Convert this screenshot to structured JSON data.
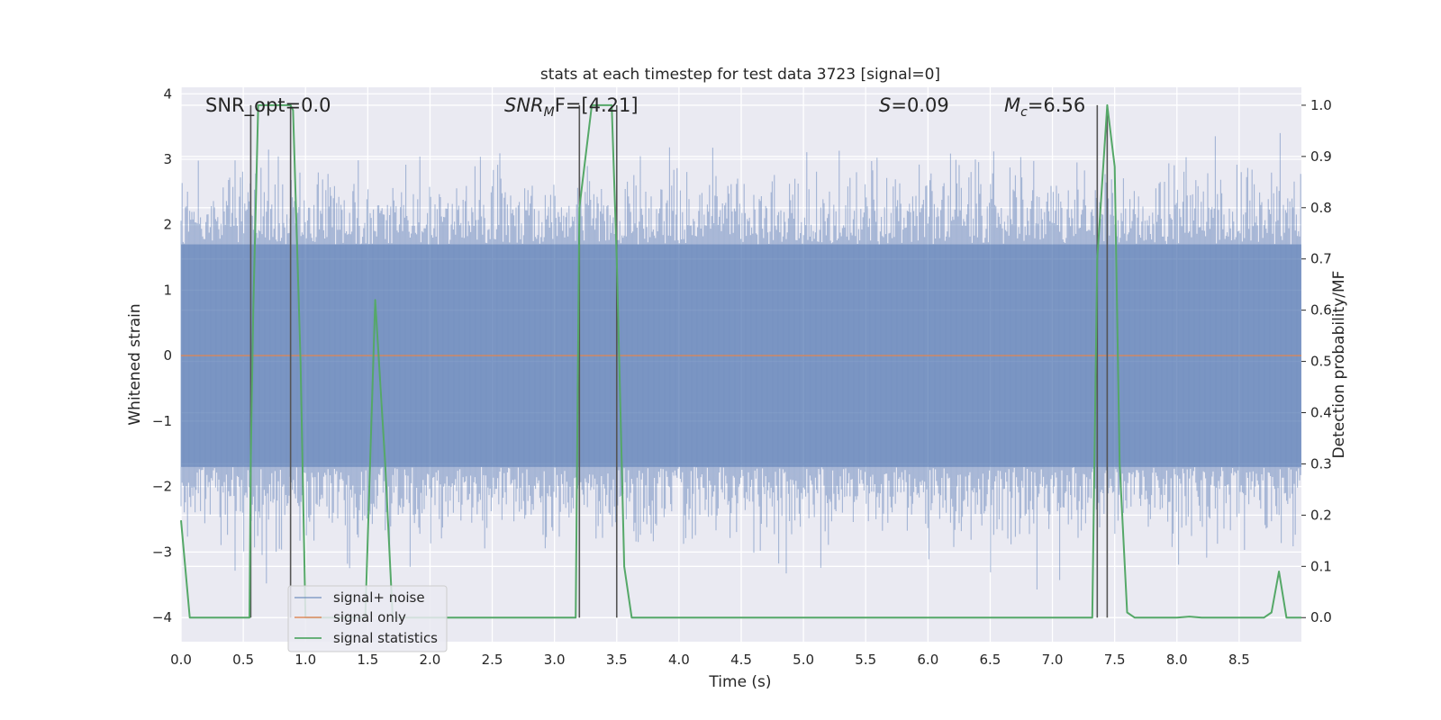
{
  "chart_data": {
    "type": "line",
    "title": "stats at each timestep for test data 3723 [signal=0]",
    "xlabel": "Time (s)",
    "ylabel_left": "Whitened strain",
    "ylabel_right": "Detection probability/MF",
    "xlim": [
      0,
      9.0
    ],
    "ylim_left": [
      -4.37,
      4.1
    ],
    "ylim_right": [
      -0.047,
      1.035
    ],
    "x_ticks": [
      "0.0",
      "0.5",
      "1.0",
      "1.5",
      "2.0",
      "2.5",
      "3.0",
      "3.5",
      "4.0",
      "4.5",
      "5.0",
      "5.5",
      "6.0",
      "6.5",
      "7.0",
      "7.5",
      "8.0",
      "8.5"
    ],
    "y_left_ticks": [
      "−4",
      "−3",
      "−2",
      "−1",
      "0",
      "1",
      "2",
      "3",
      "4"
    ],
    "y_right_ticks": [
      "0.0",
      "0.1",
      "0.2",
      "0.3",
      "0.4",
      "0.5",
      "0.6",
      "0.7",
      "0.8",
      "0.9",
      "1.0"
    ],
    "annotations": {
      "snr_opt": "SNR_opt=0.0",
      "snr_mf_sym": "SNR",
      "snr_mf_sub": "M",
      "snr_mf_rest": "F=[4.21]",
      "s_sym": "S",
      "s_rest": "=0.09",
      "mc_sym": "M",
      "mc_sub": "c",
      "mc_rest": "=6.56"
    },
    "series": [
      {
        "name": "signal+ noise",
        "color": "#4c72b0",
        "axis": "left",
        "style": "noise band",
        "band": [
          -1.7,
          1.7
        ],
        "spike_range": [
          -3.9,
          3.4
        ],
        "sample_rate": 2048
      },
      {
        "name": "signal only",
        "color": "#dd8452",
        "axis": "left",
        "x": [
          0,
          9.0
        ],
        "y": [
          0,
          0
        ]
      },
      {
        "name": "signal statistics",
        "color": "#55a868",
        "axis": "right",
        "x": [
          0.0,
          0.07,
          0.13,
          0.2,
          0.55,
          0.56,
          0.58,
          0.62,
          0.72,
          0.88,
          0.9,
          0.96,
          1.0,
          1.48,
          1.56,
          1.64,
          1.7,
          3.1,
          3.17,
          3.2,
          3.3,
          3.46,
          3.5,
          3.56,
          3.62,
          7.28,
          7.32,
          7.36,
          7.44,
          7.5,
          7.54,
          7.6,
          7.66,
          7.7,
          8.0,
          8.1,
          8.2,
          8.7,
          8.76,
          8.82,
          8.88,
          8.93,
          9.0
        ],
        "y": [
          0.19,
          0.0,
          0.0,
          0.0,
          0.0,
          0.3,
          0.6,
          1.0,
          1.0,
          1.0,
          0.99,
          0.5,
          0.0,
          0.0,
          0.62,
          0.3,
          0.0,
          0.0,
          0.0,
          0.8,
          1.0,
          1.0,
          0.7,
          0.1,
          0.0,
          0.0,
          0.0,
          0.7,
          1.0,
          0.88,
          0.3,
          0.01,
          0.0,
          0.0,
          0.0,
          0.002,
          0.0,
          0.0,
          0.01,
          0.09,
          0.0,
          0.0,
          0.0
        ]
      }
    ],
    "markers": {
      "color": "#555555",
      "x": [
        0.56,
        0.88,
        3.2,
        3.5,
        7.36,
        7.44
      ]
    },
    "legend": {
      "position": "lower-left"
    },
    "grid": true
  }
}
